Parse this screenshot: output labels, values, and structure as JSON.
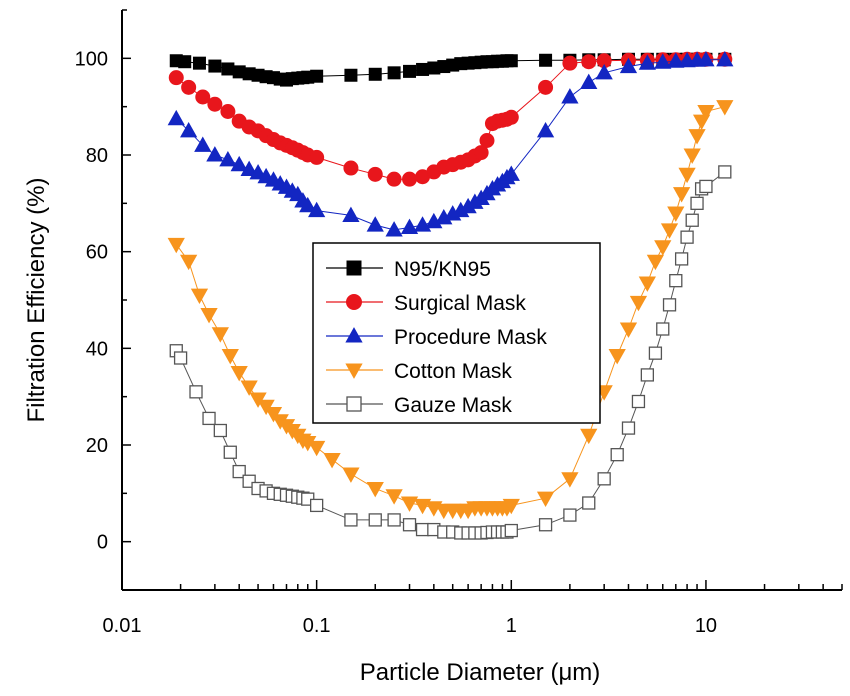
{
  "chart_data": {
    "type": "scatter",
    "title": "",
    "xlabel": "Particle Diameter (μm)",
    "ylabel": "Filtration Efficiency (%)",
    "xscale": "log",
    "xlim": [
      0.01,
      50
    ],
    "ylim": [
      -10,
      110
    ],
    "xticks": [
      0.01,
      0.1,
      1,
      10
    ],
    "xtick_labels": [
      "0.01",
      "0.1",
      "1",
      "10"
    ],
    "yticks": [
      0,
      20,
      40,
      60,
      80,
      100
    ],
    "ytick_labels": [
      "0",
      "20",
      "40",
      "60",
      "80",
      "100"
    ],
    "grid": false,
    "legend_position": "center",
    "series": [
      {
        "name": "N95/KN95",
        "color": "#000000",
        "marker": "square",
        "filled": true,
        "x": [
          0.019,
          0.021,
          0.025,
          0.03,
          0.035,
          0.04,
          0.045,
          0.05,
          0.055,
          0.06,
          0.065,
          0.07,
          0.075,
          0.08,
          0.085,
          0.09,
          0.1,
          0.15,
          0.2,
          0.25,
          0.3,
          0.35,
          0.4,
          0.45,
          0.5,
          0.55,
          0.6,
          0.65,
          0.7,
          0.75,
          0.8,
          0.85,
          0.9,
          0.95,
          1.0,
          1.5,
          2.0,
          2.5,
          3.0,
          4.0,
          5.0,
          6.0,
          7.0,
          8.0,
          9.0,
          10.0,
          12.5
        ],
        "y": [
          99.5,
          99.3,
          99.0,
          98.4,
          97.8,
          97.2,
          96.8,
          96.5,
          96.2,
          96.0,
          95.7,
          95.5,
          95.8,
          95.9,
          96.0,
          96.1,
          96.3,
          96.5,
          96.7,
          97.0,
          97.3,
          97.7,
          98.0,
          98.3,
          98.6,
          98.9,
          99.0,
          99.1,
          99.2,
          99.3,
          99.3,
          99.4,
          99.4,
          99.5,
          99.5,
          99.6,
          99.6,
          99.7,
          99.7,
          99.8,
          99.8,
          99.8,
          99.8,
          99.8,
          99.8,
          99.8,
          99.8
        ]
      },
      {
        "name": "Surgical Mask",
        "color": "#e8161c",
        "marker": "circle",
        "filled": true,
        "x": [
          0.019,
          0.022,
          0.026,
          0.03,
          0.035,
          0.04,
          0.045,
          0.05,
          0.055,
          0.06,
          0.065,
          0.07,
          0.075,
          0.08,
          0.085,
          0.09,
          0.1,
          0.15,
          0.2,
          0.25,
          0.3,
          0.35,
          0.4,
          0.45,
          0.5,
          0.55,
          0.6,
          0.65,
          0.7,
          0.75,
          0.8,
          0.85,
          0.9,
          0.95,
          1.0,
          1.5,
          2.0,
          2.5,
          3.0,
          4.0,
          5.0,
          6.0,
          7.0,
          8.0,
          9.0,
          10.0,
          12.5
        ],
        "y": [
          96,
          94,
          92,
          90.5,
          89,
          87,
          85.8,
          85,
          84,
          83.2,
          82.5,
          82,
          81.5,
          81,
          80.5,
          80,
          79.5,
          77.3,
          76,
          75,
          75,
          75.5,
          76.5,
          77.5,
          78,
          78.5,
          79,
          79.8,
          80.5,
          83,
          86.5,
          87,
          87.2,
          87.4,
          87.8,
          94,
          99,
          99.3,
          99.5,
          99.6,
          99.6,
          99.7,
          99.7,
          99.8,
          99.8,
          99.8,
          99.8
        ]
      },
      {
        "name": "Procedure Mask",
        "color": "#1326c2",
        "marker": "triangle-up",
        "filled": true,
        "x": [
          0.019,
          0.022,
          0.026,
          0.03,
          0.035,
          0.04,
          0.045,
          0.05,
          0.055,
          0.06,
          0.065,
          0.07,
          0.075,
          0.08,
          0.085,
          0.09,
          0.1,
          0.15,
          0.2,
          0.25,
          0.3,
          0.35,
          0.4,
          0.45,
          0.5,
          0.55,
          0.6,
          0.65,
          0.7,
          0.75,
          0.8,
          0.85,
          0.9,
          0.95,
          1.0,
          1.5,
          2.0,
          2.5,
          3.0,
          4.0,
          5.0,
          6.0,
          7.0,
          8.0,
          9.0,
          10.0,
          12.5
        ],
        "y": [
          87.5,
          85,
          82,
          80,
          79,
          78,
          77,
          76.3,
          75.5,
          74.8,
          74,
          73.3,
          72.5,
          71.8,
          70.5,
          69.5,
          68.5,
          67.5,
          65.5,
          64.5,
          65,
          65.5,
          66.2,
          67,
          67.8,
          68.5,
          69.3,
          70.2,
          71,
          72,
          73,
          73.8,
          74.5,
          75.3,
          76,
          85,
          92,
          95,
          97,
          98.3,
          99,
          99.2,
          99.4,
          99.5,
          99.6,
          99.7,
          99.7
        ]
      },
      {
        "name": "Cotton Mask",
        "color": "#f7941d",
        "marker": "triangle-down",
        "filled": true,
        "x": [
          0.019,
          0.022,
          0.025,
          0.028,
          0.032,
          0.036,
          0.04,
          0.045,
          0.05,
          0.055,
          0.06,
          0.065,
          0.07,
          0.075,
          0.08,
          0.085,
          0.09,
          0.1,
          0.12,
          0.15,
          0.2,
          0.25,
          0.3,
          0.35,
          0.4,
          0.45,
          0.5,
          0.55,
          0.6,
          0.65,
          0.7,
          0.75,
          0.8,
          0.85,
          0.9,
          0.95,
          1.0,
          1.5,
          2.0,
          2.5,
          3.0,
          3.5,
          4.0,
          4.5,
          5.0,
          5.5,
          6.0,
          6.5,
          7.0,
          7.5,
          8.0,
          8.5,
          9.0,
          9.5,
          10.0,
          12.5
        ],
        "y": [
          61.5,
          58,
          51,
          47,
          43,
          38.5,
          35,
          32,
          29.5,
          28,
          26.5,
          25,
          24,
          23,
          22,
          21,
          20.5,
          19.5,
          17,
          14,
          11,
          9.5,
          8,
          7.5,
          7,
          6.5,
          6.5,
          6.5,
          6.5,
          7,
          7,
          7,
          7,
          7,
          7,
          7,
          7.5,
          9,
          13,
          22,
          31,
          38.5,
          44,
          49.5,
          53.5,
          58,
          61,
          64.5,
          68,
          72,
          76,
          80,
          84,
          87,
          89,
          90
        ]
      },
      {
        "name": "Gauze Mask",
        "color": "#555555",
        "marker": "square",
        "filled": false,
        "x": [
          0.019,
          0.02,
          0.024,
          0.028,
          0.032,
          0.036,
          0.04,
          0.045,
          0.05,
          0.055,
          0.06,
          0.065,
          0.07,
          0.075,
          0.08,
          0.085,
          0.09,
          0.1,
          0.15,
          0.2,
          0.25,
          0.3,
          0.35,
          0.4,
          0.45,
          0.5,
          0.55,
          0.6,
          0.65,
          0.7,
          0.75,
          0.8,
          0.85,
          0.9,
          0.95,
          1.0,
          1.5,
          2.0,
          2.5,
          3.0,
          3.5,
          4.0,
          4.5,
          5.0,
          5.5,
          6.0,
          6.5,
          7.0,
          7.5,
          8.0,
          8.5,
          9.0,
          9.5,
          10.0,
          12.5
        ],
        "y": [
          39.5,
          38,
          31,
          25.5,
          23,
          18.5,
          14.5,
          12.5,
          11,
          10.5,
          10,
          9.8,
          9.6,
          9.4,
          9.2,
          9,
          8.8,
          7.5,
          4.5,
          4.5,
          4.5,
          3.5,
          2.5,
          2.5,
          2,
          2,
          1.8,
          1.8,
          1.8,
          1.8,
          1.9,
          2,
          2,
          2,
          2,
          2.3,
          3.5,
          5.5,
          8,
          13,
          18,
          23.5,
          29,
          34.5,
          39,
          44,
          49,
          54,
          58.5,
          63,
          66.5,
          70,
          73,
          73.5,
          76.5
        ]
      }
    ]
  }
}
